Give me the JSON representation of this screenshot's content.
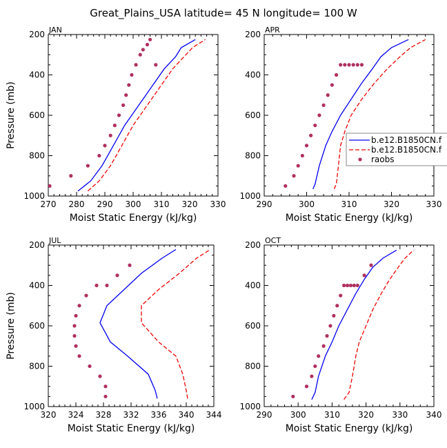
{
  "figure": {
    "title": "Great_Plains_USA  latitude= 45 N longitude= 100 W"
  },
  "colors": {
    "model_a": "#0000ee",
    "model_b": "#ee0000",
    "raobs": "#b03060"
  },
  "legend": {
    "items": [
      {
        "label": "b.e12.B1850CN.f",
        "style": "solid",
        "color": "#0000ee"
      },
      {
        "label": "b.e12.B1850CN.f",
        "style": "dashed",
        "color": "#ee0000"
      },
      {
        "label": "raobs",
        "style": "dots",
        "color": "#b03060"
      }
    ]
  },
  "chart_data": [
    {
      "type": "line",
      "panel": "JAN",
      "xlabel": "Moist Static Energy (kJ/kg)",
      "ylabel": "Pressure (mb)",
      "xlim": [
        270,
        330
      ],
      "ylim": [
        1000,
        200
      ],
      "xticks": [
        270,
        280,
        290,
        300,
        310,
        320,
        330
      ],
      "yticks": [
        200,
        400,
        600,
        800,
        1000
      ],
      "series": [
        {
          "key": "model_a",
          "style": "solid",
          "x": [
            280.5,
            285,
            289,
            293,
            297,
            302,
            307,
            311,
            315,
            317,
            322
          ],
          "y": [
            975,
            925,
            850,
            750,
            650,
            550,
            450,
            370,
            310,
            265,
            225
          ]
        },
        {
          "key": "model_b",
          "style": "dashed",
          "x": [
            284,
            288,
            292,
            296,
            300,
            305,
            310,
            314,
            318,
            321,
            325.5
          ],
          "y": [
            975,
            925,
            850,
            750,
            650,
            550,
            450,
            370,
            310,
            265,
            225
          ]
        },
        {
          "key": "raobs",
          "style": "dots",
          "x": [
            270.5,
            278,
            284,
            288,
            290,
            292,
            293.5,
            295,
            296.5,
            297.5,
            298.5,
            299.5,
            301,
            302.5,
            303.5,
            305,
            306,
            308
          ],
          "y": [
            950,
            900,
            850,
            800,
            750,
            700,
            650,
            600,
            550,
            500,
            450,
            400,
            350,
            300,
            275,
            250,
            225,
            350
          ]
        }
      ]
    },
    {
      "type": "line",
      "panel": "APR",
      "xlabel": "Moist Static Energy (kJ/kg)",
      "ylabel": "",
      "xlim": [
        290,
        330
      ],
      "ylim": [
        1000,
        200
      ],
      "xticks": [
        290,
        300,
        310,
        320,
        330
      ],
      "yticks": [
        200,
        400,
        600,
        800,
        1000
      ],
      "series": [
        {
          "key": "model_a",
          "style": "solid",
          "x": [
            301.5,
            302,
            303,
            304.5,
            306,
            308,
            310.5,
            313,
            315.5,
            317.5,
            320,
            324
          ],
          "y": [
            965,
            940,
            850,
            750,
            680,
            600,
            520,
            440,
            370,
            310,
            265,
            225
          ]
        },
        {
          "key": "model_b",
          "style": "dashed",
          "x": [
            306.5,
            307,
            307.5,
            308,
            309,
            310.5,
            313,
            316,
            319,
            322,
            324.5,
            328
          ],
          "y": [
            965,
            940,
            850,
            750,
            680,
            600,
            520,
            440,
            370,
            310,
            265,
            225
          ]
        },
        {
          "key": "raobs",
          "style": "dots",
          "x": [
            295,
            297,
            298,
            299,
            300,
            301,
            302,
            303,
            304,
            305,
            306,
            307,
            308,
            309,
            310,
            311,
            312,
            313
          ],
          "y": [
            950,
            900,
            850,
            800,
            750,
            700,
            650,
            600,
            550,
            500,
            450,
            400,
            350,
            350,
            350,
            350,
            350,
            350
          ]
        }
      ]
    },
    {
      "type": "line",
      "panel": "JUL",
      "xlabel": "Moist Static Energy (kJ/kg)",
      "ylabel": "Pressure (mb)",
      "xlim": [
        320,
        344
      ],
      "ylim": [
        1000,
        200
      ],
      "xticks": [
        320,
        324,
        328,
        332,
        336,
        340,
        344
      ],
      "yticks": [
        200,
        400,
        600,
        800,
        1000
      ],
      "series": [
        {
          "key": "model_a",
          "style": "solid",
          "x": [
            335.8,
            335.5,
            334.5,
            331.5,
            329,
            327.5,
            328.5,
            331,
            333.5,
            336.5,
            338.5
          ],
          "y": [
            960,
            920,
            840,
            750,
            680,
            585,
            500,
            420,
            340,
            265,
            222
          ]
        },
        {
          "key": "model_b",
          "style": "dashed",
          "x": [
            340.2,
            340,
            339.5,
            338.5,
            336,
            333.5,
            333.5,
            336,
            339,
            341.5,
            343.5
          ],
          "y": [
            960,
            920,
            840,
            750,
            680,
            585,
            500,
            420,
            340,
            265,
            222
          ]
        },
        {
          "key": "raobs",
          "style": "dots",
          "x": [
            328.3,
            328.3,
            327.5,
            326,
            324.5,
            324,
            323.8,
            323.8,
            324,
            324.5,
            325.5,
            327,
            328.5,
            330,
            331.8
          ],
          "y": [
            950,
            900,
            850,
            800,
            750,
            700,
            650,
            600,
            550,
            500,
            450,
            400,
            400,
            350,
            300
          ]
        }
      ]
    },
    {
      "type": "line",
      "panel": "OCT",
      "xlabel": "Moist Static Energy (kJ/kg)",
      "ylabel": "",
      "xlim": [
        290,
        340
      ],
      "ylim": [
        1000,
        200
      ],
      "xticks": [
        290,
        300,
        310,
        320,
        330,
        340
      ],
      "yticks": [
        200,
        400,
        600,
        800,
        1000
      ],
      "series": [
        {
          "key": "model_a",
          "style": "solid",
          "x": [
            304,
            305,
            306,
            308,
            310,
            312,
            314.5,
            317,
            319.5,
            322,
            325,
            329
          ],
          "y": [
            965,
            930,
            850,
            750,
            680,
            600,
            520,
            440,
            370,
            310,
            265,
            225
          ]
        },
        {
          "key": "model_b",
          "style": "dashed",
          "x": [
            313.5,
            315,
            316,
            317,
            318,
            320,
            322,
            324.5,
            327,
            329.5,
            331.5,
            334
          ],
          "y": [
            965,
            930,
            850,
            750,
            680,
            600,
            520,
            440,
            370,
            310,
            265,
            225
          ]
        },
        {
          "key": "raobs",
          "style": "dots",
          "x": [
            298.5,
            302.5,
            304,
            305,
            306,
            307.5,
            308.5,
            309.5,
            310.5,
            311.5,
            312.5,
            313.5,
            314.5,
            315.5,
            316.5,
            317.5,
            319.5,
            321.5
          ],
          "y": [
            950,
            900,
            850,
            800,
            750,
            700,
            650,
            600,
            550,
            500,
            450,
            400,
            400,
            400,
            400,
            400,
            350,
            300
          ]
        }
      ]
    }
  ]
}
